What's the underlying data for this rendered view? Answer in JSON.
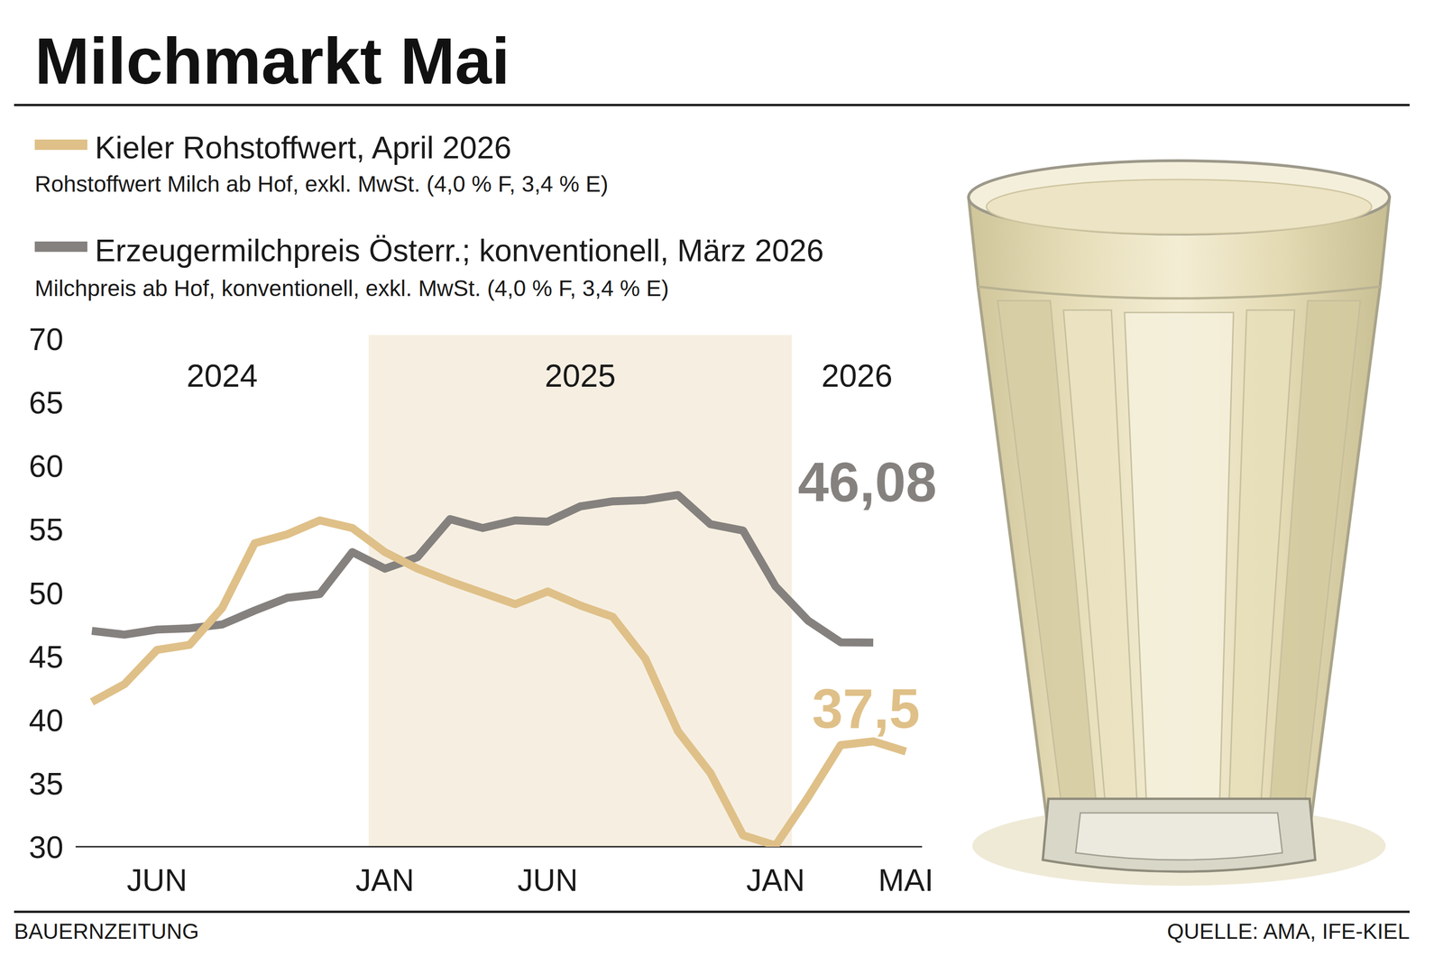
{
  "chart_data": {
    "type": "line",
    "title": "Milchmarkt Mai",
    "categories": [
      null,
      null,
      "JUN",
      null,
      null,
      null,
      null,
      null,
      null,
      "JAN",
      null,
      null,
      null,
      null,
      "JUN",
      null,
      null,
      null,
      null,
      null,
      null,
      "JAN",
      null,
      null,
      null,
      "MAI"
    ],
    "years": [
      "2024",
      "2024",
      "2024",
      "2024",
      "2024",
      "2024",
      "2024",
      "2024",
      "2024",
      "2025",
      "2025",
      "2025",
      "2025",
      "2025",
      "2025",
      "2025",
      "2025",
      "2025",
      "2025",
      "2025",
      "2025",
      "2025",
      "2026",
      "2026",
      "2026",
      "2026"
    ],
    "ylim": [
      30,
      70
    ],
    "yticks": [
      30,
      35,
      40,
      45,
      50,
      55,
      60,
      65,
      70
    ],
    "grid": false,
    "legend": "top-left",
    "data_labels": true,
    "series": [
      {
        "name": "Kieler Rohstoffwert, April 2026",
        "description": "Rohstoffwert Milch ab Hof, exkl. MwSt. (4,0 % F, 3,4 % E)",
        "color": "#dfc088",
        "values": [
          41.4,
          42.8,
          45.5,
          45.9,
          48.8,
          53.9,
          54.6,
          55.7,
          55.1,
          53.2,
          51.9,
          50.9,
          50.0,
          49.1,
          50.1,
          49.0,
          48.1,
          44.8,
          39.1,
          35.8,
          30.9,
          30.1,
          33.9,
          38.0,
          38.3,
          37.5
        ],
        "value_labels": [
          null,
          null,
          null,
          null,
          null,
          null,
          null,
          null,
          null,
          null,
          null,
          null,
          null,
          null,
          null,
          null,
          null,
          null,
          null,
          null,
          null,
          null,
          null,
          null,
          null,
          "37,5"
        ]
      },
      {
        "name": "Erzeugermilchpreis Österr.; konventionell, März 2026",
        "description": "Milchpreis ab Hof, konventionell, exkl. MwSt. (4,0 % F, 3,4 % E)",
        "color": "#85817e",
        "values": [
          47.0,
          46.7,
          47.1,
          47.2,
          47.5,
          48.6,
          49.6,
          49.9,
          53.2,
          51.9,
          52.8,
          55.8,
          55.1,
          55.7,
          55.6,
          56.8,
          57.2,
          57.3,
          57.7,
          55.4,
          54.9,
          50.5,
          47.8,
          46.1,
          46.08,
          null
        ],
        "value_labels": [
          null,
          null,
          null,
          null,
          null,
          null,
          null,
          null,
          null,
          null,
          null,
          null,
          null,
          null,
          null,
          null,
          null,
          null,
          null,
          null,
          null,
          null,
          null,
          null,
          "46,08",
          null
        ]
      }
    ],
    "publisher": "BAUERNZEITUNG",
    "source": "QUELLE: AMA, IFE-KIEL"
  }
}
